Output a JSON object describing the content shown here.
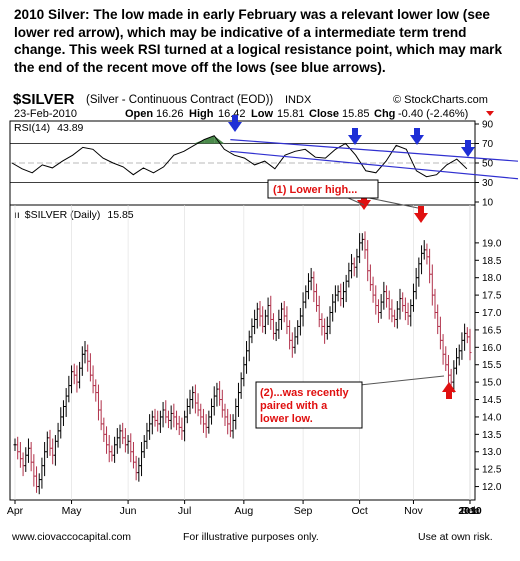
{
  "headline": {
    "lead": "2010 Silver:",
    "body": "The low made in early February was a relevant lower low (see lower red arrow), which may be indicative of a intermediate term trend change.   This week RSI turned at a logical resistance point, which may mark the end of the recent move off the lows (see blue arrows)."
  },
  "header": {
    "symbol": "$SILVER",
    "description": "(Silver - Continuous Contract (EOD))",
    "exchange": "INDX",
    "watermark": "© StockCharts.com",
    "date": "23-Feb-2010",
    "open_label": "Open",
    "open": "16.26",
    "high_label": "High",
    "high": "16.42",
    "low_label": "Low",
    "low": "15.81",
    "close_label": "Close",
    "close": "15.85",
    "chg_label": "Chg",
    "chg": "-0.40 (-2.46%)"
  },
  "annotations": {
    "lower_high": "(1)  Lower high...",
    "lower_low_1": "(2)...was recently",
    "lower_low_2": "paired with a",
    "lower_low_3": "lower low."
  },
  "footer": {
    "left": "www.ciovaccocapital.com",
    "mid": "For illustrative purposes only.",
    "right": "Use at own risk."
  },
  "colors": {
    "blue_arrow": "#1f2fd6",
    "red_arrow": "#e01010",
    "trendline": "#3030d0",
    "rsi_overbought_fill": "#4a8a4a",
    "bars": "#000000"
  },
  "chart_data": [
    {
      "type": "line",
      "name": "rsi_panel",
      "label": "RSI(14)",
      "last_value": "43.89",
      "ylim": [
        10,
        90
      ],
      "yticks": [
        10,
        30,
        50,
        70,
        90
      ],
      "bands": [
        30,
        70
      ],
      "x": [
        0,
        5,
        10,
        15,
        20,
        25,
        30,
        35,
        40,
        45,
        50,
        55,
        60,
        65,
        70,
        75,
        80,
        85,
        90,
        95,
        100,
        105,
        110,
        115,
        120,
        125,
        130,
        135,
        140,
        145,
        150,
        155,
        160,
        165,
        170,
        175,
        180,
        185,
        190,
        195,
        200,
        205,
        210,
        215,
        220,
        225
      ],
      "values": [
        50,
        44,
        40,
        48,
        45,
        52,
        58,
        66,
        64,
        55,
        50,
        46,
        38,
        45,
        40,
        46,
        58,
        62,
        68,
        74,
        78,
        64,
        58,
        55,
        48,
        52,
        44,
        58,
        62,
        64,
        56,
        55,
        64,
        70,
        58,
        42,
        40,
        52,
        68,
        64,
        42,
        36,
        38,
        48,
        54,
        44
      ],
      "trendlines": [
        {
          "from": [
            108,
            74
          ],
          "to": [
            228,
            58
          ]
        },
        {
          "from": [
            108,
            62
          ],
          "to": [
            228,
            40
          ]
        }
      ]
    },
    {
      "type": "ohlc",
      "name": "price_panel",
      "label": "$SILVER (Daily)",
      "last_value": "15.85",
      "ylim": [
        11.7,
        19.6
      ],
      "yticks": [
        12.0,
        12.5,
        13.0,
        13.5,
        14.0,
        14.5,
        15.0,
        15.5,
        16.0,
        16.5,
        17.0,
        17.5,
        18.0,
        18.5,
        19.0
      ],
      "x_labels": [
        "Apr",
        "May",
        "Jun",
        "Jul",
        "Aug",
        "Sep",
        "Oct",
        "Nov",
        "Dec",
        "2010",
        "Feb"
      ],
      "x_label_positions": [
        0,
        21,
        42,
        63,
        85,
        107,
        128,
        148,
        170,
        190,
        211
      ],
      "close": [
        13.2,
        13.0,
        12.8,
        12.6,
        12.9,
        13.1,
        12.7,
        12.3,
        12.0,
        12.2,
        12.6,
        13.0,
        13.4,
        13.1,
        12.9,
        13.3,
        13.6,
        14.0,
        14.3,
        14.6,
        14.9,
        15.3,
        15.2,
        15.0,
        15.4,
        15.8,
        15.9,
        15.6,
        15.2,
        14.9,
        14.7,
        14.2,
        13.8,
        13.5,
        13.2,
        13.0,
        12.9,
        13.2,
        13.4,
        13.6,
        13.4,
        13.2,
        13.3,
        13.0,
        12.7,
        12.4,
        12.6,
        13.0,
        13.3,
        13.6,
        13.8,
        14.0,
        13.9,
        13.8,
        14.0,
        14.2,
        14.0,
        13.9,
        14.1,
        14.0,
        13.8,
        13.7,
        13.6,
        14.0,
        14.3,
        14.5,
        14.7,
        14.4,
        14.2,
        14.0,
        13.8,
        13.7,
        14.0,
        14.3,
        14.6,
        14.8,
        14.5,
        14.2,
        14.0,
        13.8,
        13.6,
        13.9,
        14.3,
        14.7,
        15.1,
        15.5,
        15.9,
        16.3,
        16.6,
        16.8,
        17.1,
        16.9,
        16.6,
        16.9,
        17.2,
        16.8,
        16.4,
        16.5,
        16.8,
        17.1,
        16.9,
        16.6,
        16.2,
        16.0,
        16.3,
        16.6,
        16.9,
        17.3,
        17.6,
        17.9,
        18.0,
        17.6,
        17.2,
        16.8,
        16.6,
        16.4,
        16.6,
        17.0,
        17.3,
        17.5,
        17.6,
        17.4,
        17.6,
        17.9,
        18.2,
        18.4,
        18.3,
        18.6,
        19.0,
        19.1,
        18.8,
        18.2,
        17.8,
        17.5,
        17.2,
        17.0,
        17.3,
        17.6,
        17.4,
        17.1,
        16.9,
        16.8,
        17.1,
        17.4,
        17.2,
        17.0,
        16.9,
        17.2,
        17.6,
        18.0,
        18.4,
        18.7,
        18.8,
        18.6,
        18.1,
        17.5,
        17.0,
        16.6,
        16.2,
        15.8,
        15.5,
        15.2,
        15.0,
        15.4,
        15.7,
        15.9,
        16.2,
        16.4,
        16.3,
        15.85
      ]
    }
  ]
}
